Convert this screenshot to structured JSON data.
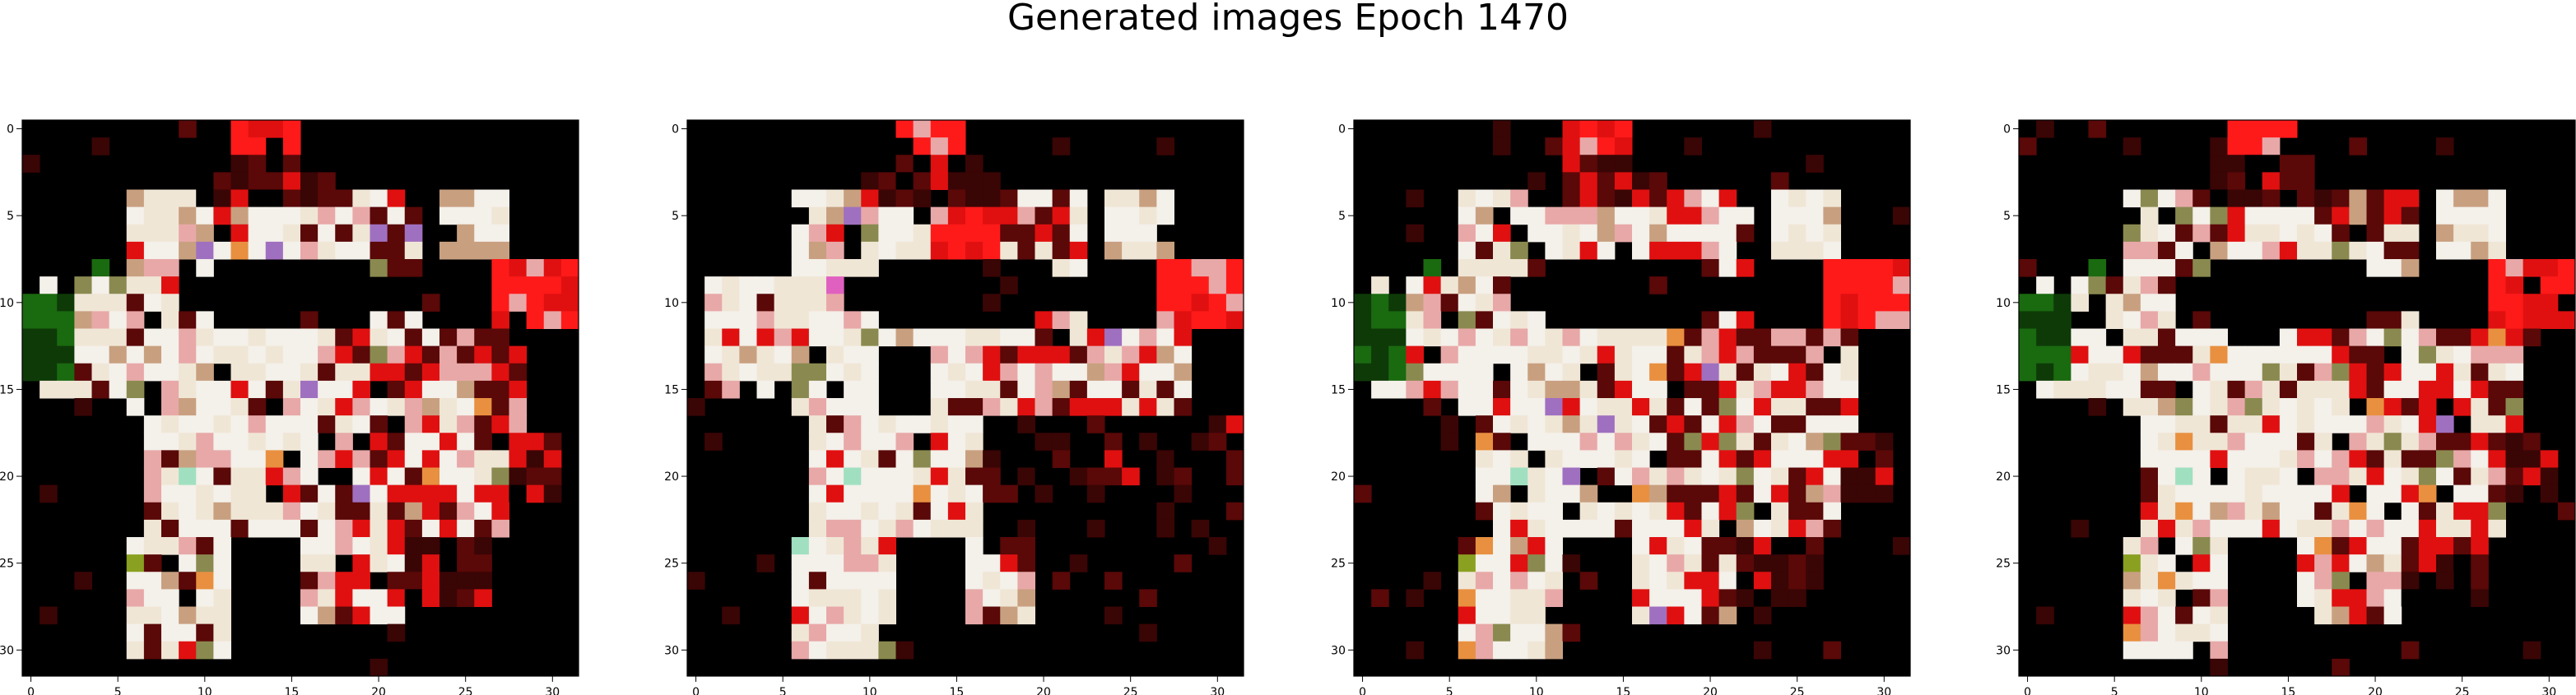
{
  "figure": {
    "title": "Generated images Epoch 1470"
  },
  "panels": [
    {
      "name": "generated-image-1",
      "grid_size": 32,
      "x_ticks": [
        "0",
        "5",
        "10",
        "15",
        "20",
        "25",
        "30"
      ],
      "y_ticks": [
        "0",
        "5",
        "10",
        "15",
        "20",
        "25",
        "30"
      ]
    },
    {
      "name": "generated-image-2",
      "grid_size": 32,
      "x_ticks": [
        "0",
        "5",
        "10",
        "15",
        "20",
        "25",
        "30"
      ],
      "y_ticks": [
        "0",
        "5",
        "10",
        "15",
        "20",
        "25",
        "30"
      ]
    },
    {
      "name": "generated-image-3",
      "grid_size": 32,
      "x_ticks": [
        "0",
        "5",
        "10",
        "15",
        "20",
        "25",
        "30"
      ],
      "y_ticks": [
        "0",
        "5",
        "10",
        "15",
        "20",
        "25",
        "30"
      ]
    },
    {
      "name": "generated-image-4",
      "grid_size": 32,
      "x_ticks": [
        "0",
        "5",
        "10",
        "15",
        "20",
        "25",
        "30"
      ],
      "y_ticks": [
        "0",
        "5",
        "10",
        "15",
        "20",
        "25",
        "30"
      ]
    }
  ],
  "colors": {
    "background": "#000000",
    "white": "#f4f0ea",
    "cream": "#f0e6d6",
    "pink": "#e8a8a8",
    "red": "#e01010",
    "bright_red": "#ff1a1a",
    "dark_red": "#5a0808",
    "maroon": "#3a0505",
    "orange": "#e89040",
    "tan": "#c8a080",
    "olive": "#8a8a50",
    "green": "#1a6a10",
    "dark_green": "#0e3a08",
    "purple": "#a070c0",
    "magenta": "#e060c0",
    "mint": "#a0e0c0"
  }
}
